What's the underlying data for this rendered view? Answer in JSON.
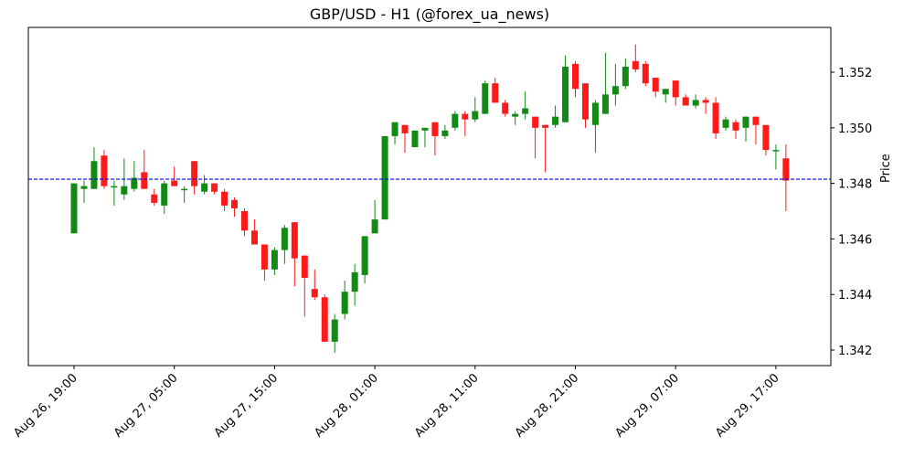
{
  "chart_data": {
    "type": "candlestick",
    "title": "GBP/USD - H1 (@forex_ua_news)",
    "xlabel": "",
    "ylabel": "Price",
    "ylim": [
      1.3414,
      1.3537
    ],
    "y_ticks": [
      "1.342",
      "1.344",
      "1.346",
      "1.348",
      "1.350",
      "1.352"
    ],
    "x_ticks": [
      {
        "index": 0,
        "label": "Aug 26, 19:00"
      },
      {
        "index": 10,
        "label": "Aug 27, 05:00"
      },
      {
        "index": 20,
        "label": "Aug 27, 15:00"
      },
      {
        "index": 30,
        "label": "Aug 28, 01:00"
      },
      {
        "index": 40,
        "label": "Aug 28, 11:00"
      },
      {
        "index": 50,
        "label": "Aug 28, 21:00"
      },
      {
        "index": 60,
        "label": "Aug 29, 07:00"
      },
      {
        "index": 70,
        "label": "Aug 29, 17:00"
      }
    ],
    "reference_line": {
      "value": 1.34815,
      "style": "dashed",
      "color": "#0000ff"
    },
    "colors": {
      "up": "#138a13",
      "down": "#ff1a1a"
    },
    "grid": false,
    "legend": null,
    "candles": [
      {
        "o": 1.3462,
        "h": 1.348,
        "l": 1.3462,
        "c": 1.348
      },
      {
        "o": 1.3478,
        "h": 1.3481,
        "l": 1.3473,
        "c": 1.3479
      },
      {
        "o": 1.3478,
        "h": 1.3493,
        "l": 1.3478,
        "c": 1.3488
      },
      {
        "o": 1.349,
        "h": 1.3492,
        "l": 1.3478,
        "c": 1.3479
      },
      {
        "o": 1.3479,
        "h": 1.3481,
        "l": 1.3472,
        "c": 1.3479
      },
      {
        "o": 1.3476,
        "h": 1.3489,
        "l": 1.3474,
        "c": 1.3479
      },
      {
        "o": 1.3478,
        "h": 1.3488,
        "l": 1.3477,
        "c": 1.3482
      },
      {
        "o": 1.3484,
        "h": 1.3492,
        "l": 1.3478,
        "c": 1.3478
      },
      {
        "o": 1.3476,
        "h": 1.3478,
        "l": 1.3472,
        "c": 1.3473
      },
      {
        "o": 1.3472,
        "h": 1.3481,
        "l": 1.3469,
        "c": 1.348
      },
      {
        "o": 1.3481,
        "h": 1.3486,
        "l": 1.3479,
        "c": 1.3479
      },
      {
        "o": 1.3478,
        "h": 1.3479,
        "l": 1.3473,
        "c": 1.3478
      },
      {
        "o": 1.3488,
        "h": 1.3488,
        "l": 1.3476,
        "c": 1.3479
      },
      {
        "o": 1.3477,
        "h": 1.3483,
        "l": 1.3476,
        "c": 1.348
      },
      {
        "o": 1.348,
        "h": 1.348,
        "l": 1.3476,
        "c": 1.3477
      },
      {
        "o": 1.3477,
        "h": 1.3478,
        "l": 1.347,
        "c": 1.3472
      },
      {
        "o": 1.3474,
        "h": 1.3475,
        "l": 1.3468,
        "c": 1.3471
      },
      {
        "o": 1.347,
        "h": 1.3471,
        "l": 1.3461,
        "c": 1.3463
      },
      {
        "o": 1.3463,
        "h": 1.3467,
        "l": 1.3458,
        "c": 1.3458
      },
      {
        "o": 1.3458,
        "h": 1.3458,
        "l": 1.3445,
        "c": 1.3449
      },
      {
        "o": 1.3449,
        "h": 1.3457,
        "l": 1.3447,
        "c": 1.3456
      },
      {
        "o": 1.3456,
        "h": 1.3465,
        "l": 1.3451,
        "c": 1.3464
      },
      {
        "o": 1.3466,
        "h": 1.3466,
        "l": 1.3443,
        "c": 1.3453
      },
      {
        "o": 1.3454,
        "h": 1.3454,
        "l": 1.3432,
        "c": 1.3446
      },
      {
        "o": 1.3442,
        "h": 1.3449,
        "l": 1.3438,
        "c": 1.3439
      },
      {
        "o": 1.3439,
        "h": 1.344,
        "l": 1.3423,
        "c": 1.3423
      },
      {
        "o": 1.3423,
        "h": 1.3433,
        "l": 1.3419,
        "c": 1.3431
      },
      {
        "o": 1.3433,
        "h": 1.3445,
        "l": 1.3431,
        "c": 1.3441
      },
      {
        "o": 1.3441,
        "h": 1.3451,
        "l": 1.3436,
        "c": 1.3448
      },
      {
        "o": 1.3447,
        "h": 1.3461,
        "l": 1.3444,
        "c": 1.3461
      },
      {
        "o": 1.3462,
        "h": 1.3474,
        "l": 1.3462,
        "c": 1.3467
      },
      {
        "o": 1.3467,
        "h": 1.3497,
        "l": 1.3467,
        "c": 1.3497
      },
      {
        "o": 1.3497,
        "h": 1.3502,
        "l": 1.3494,
        "c": 1.3502
      },
      {
        "o": 1.3501,
        "h": 1.3501,
        "l": 1.3491,
        "c": 1.3498
      },
      {
        "o": 1.3493,
        "h": 1.3499,
        "l": 1.3493,
        "c": 1.3499
      },
      {
        "o": 1.3499,
        "h": 1.35,
        "l": 1.3493,
        "c": 1.35
      },
      {
        "o": 1.3502,
        "h": 1.3502,
        "l": 1.349,
        "c": 1.3497
      },
      {
        "o": 1.3497,
        "h": 1.3501,
        "l": 1.3496,
        "c": 1.3499
      },
      {
        "o": 1.35,
        "h": 1.3506,
        "l": 1.3499,
        "c": 1.3505
      },
      {
        "o": 1.3505,
        "h": 1.3506,
        "l": 1.3497,
        "c": 1.3503
      },
      {
        "o": 1.3503,
        "h": 1.3511,
        "l": 1.3502,
        "c": 1.3506
      },
      {
        "o": 1.3505,
        "h": 1.3517,
        "l": 1.3505,
        "c": 1.3516
      },
      {
        "o": 1.3516,
        "h": 1.3518,
        "l": 1.3509,
        "c": 1.3509
      },
      {
        "o": 1.3509,
        "h": 1.351,
        "l": 1.3504,
        "c": 1.3505
      },
      {
        "o": 1.3504,
        "h": 1.3506,
        "l": 1.3501,
        "c": 1.3505
      },
      {
        "o": 1.3505,
        "h": 1.3513,
        "l": 1.3503,
        "c": 1.3507
      },
      {
        "o": 1.3504,
        "h": 1.3504,
        "l": 1.3489,
        "c": 1.35
      },
      {
        "o": 1.3501,
        "h": 1.3501,
        "l": 1.3484,
        "c": 1.35
      },
      {
        "o": 1.3501,
        "h": 1.3508,
        "l": 1.35,
        "c": 1.3504
      },
      {
        "o": 1.3502,
        "h": 1.3526,
        "l": 1.3502,
        "c": 1.3522
      },
      {
        "o": 1.3523,
        "h": 1.3524,
        "l": 1.3511,
        "c": 1.3514
      },
      {
        "o": 1.3516,
        "h": 1.3516,
        "l": 1.35,
        "c": 1.3503
      },
      {
        "o": 1.3501,
        "h": 1.351,
        "l": 1.3491,
        "c": 1.3509
      },
      {
        "o": 1.3505,
        "h": 1.3527,
        "l": 1.3505,
        "c": 1.3512
      },
      {
        "o": 1.3512,
        "h": 1.3523,
        "l": 1.3508,
        "c": 1.3515
      },
      {
        "o": 1.3515,
        "h": 1.3525,
        "l": 1.3514,
        "c": 1.3522
      },
      {
        "o": 1.3524,
        "h": 1.353,
        "l": 1.352,
        "c": 1.3521
      },
      {
        "o": 1.3523,
        "h": 1.3524,
        "l": 1.3515,
        "c": 1.3516
      },
      {
        "o": 1.3518,
        "h": 1.3518,
        "l": 1.3511,
        "c": 1.3513
      },
      {
        "o": 1.3512,
        "h": 1.3514,
        "l": 1.3509,
        "c": 1.3514
      },
      {
        "o": 1.3517,
        "h": 1.3517,
        "l": 1.3508,
        "c": 1.3511
      },
      {
        "o": 1.3511,
        "h": 1.3512,
        "l": 1.3508,
        "c": 1.3508
      },
      {
        "o": 1.3508,
        "h": 1.3512,
        "l": 1.3507,
        "c": 1.351
      },
      {
        "o": 1.351,
        "h": 1.3511,
        "l": 1.3505,
        "c": 1.3509
      },
      {
        "o": 1.3509,
        "h": 1.3511,
        "l": 1.3496,
        "c": 1.3498
      },
      {
        "o": 1.35,
        "h": 1.3504,
        "l": 1.3499,
        "c": 1.3503
      },
      {
        "o": 1.3502,
        "h": 1.3503,
        "l": 1.3496,
        "c": 1.3499
      },
      {
        "o": 1.35,
        "h": 1.3504,
        "l": 1.3495,
        "c": 1.3504
      },
      {
        "o": 1.3504,
        "h": 1.3504,
        "l": 1.3494,
        "c": 1.3501
      },
      {
        "o": 1.3501,
        "h": 1.3501,
        "l": 1.349,
        "c": 1.3492
      },
      {
        "o": 1.3492,
        "h": 1.3494,
        "l": 1.3485,
        "c": 1.3492
      },
      {
        "o": 1.3489,
        "h": 1.3494,
        "l": 1.347,
        "c": 1.3481
      }
    ]
  }
}
